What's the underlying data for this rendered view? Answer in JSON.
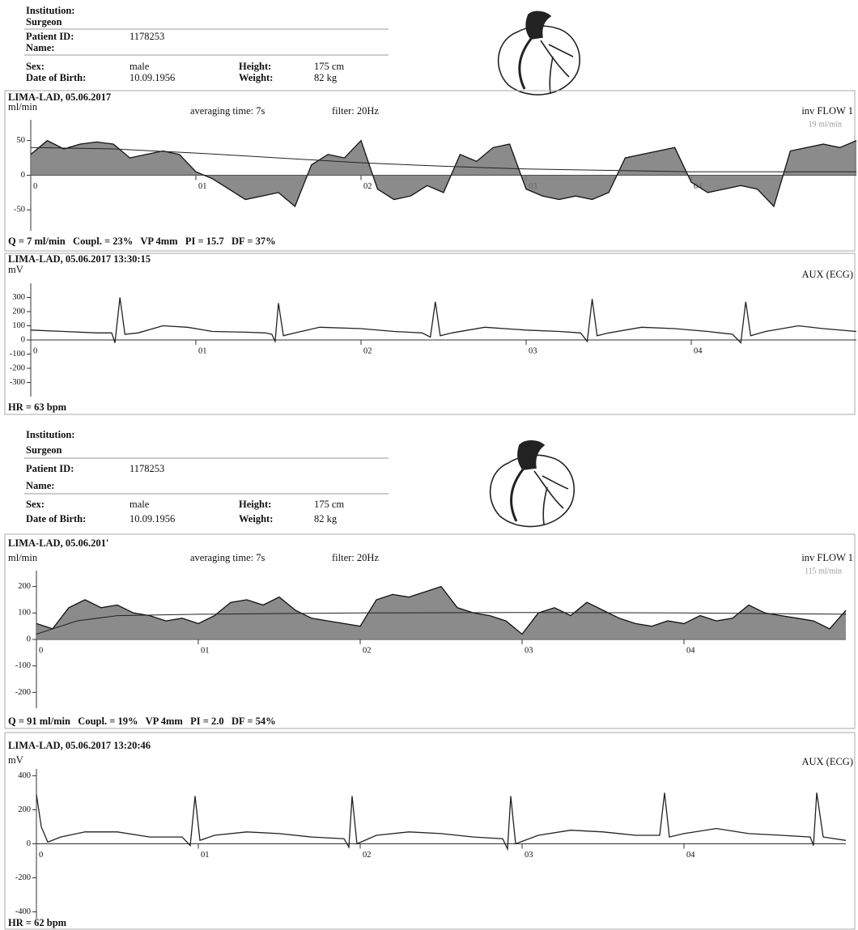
{
  "reports": [
    {
      "header": {
        "institution_label": "Institution:",
        "surgeon_label": "Surgeon",
        "patient_id_label": "Patient ID:",
        "patient_id": "1178253",
        "name_label": "Name:",
        "sex_label": "Sex:",
        "sex": "male",
        "dob_label": "Date of Birth:",
        "dob": "10.09.1956",
        "height_label": "Height:",
        "height": "175 cm",
        "weight_label": "Weight:",
        "weight": "82 kg"
      },
      "flow": {
        "type": "area",
        "title": "LIMA-LAD, 05.06.2017",
        "y_unit": "ml/min",
        "averaging": "averaging time: 7s",
        "filter": "filter: 20Hz",
        "channel": "inv FLOW 1",
        "scale_note": "19 ml/min",
        "x": [
          0,
          0.1,
          0.2,
          0.3,
          0.4,
          0.5,
          0.6,
          0.7,
          0.8,
          0.9,
          1,
          1.1,
          1.2,
          1.3,
          1.4,
          1.5,
          1.6,
          1.7,
          1.8,
          1.9,
          2,
          2.1,
          2.2,
          2.3,
          2.4,
          2.5,
          2.6,
          2.7,
          2.8,
          2.9,
          3,
          3.1,
          3.2,
          3.3,
          3.4,
          3.5,
          3.6,
          3.7,
          3.8,
          3.9,
          4,
          4.1,
          4.2,
          4.3,
          4.4,
          4.5,
          4.6,
          4.7,
          4.8,
          4.9,
          5
        ],
        "values": [
          30,
          50,
          38,
          45,
          48,
          45,
          25,
          30,
          35,
          30,
          5,
          -5,
          -20,
          -35,
          -30,
          -25,
          -45,
          15,
          30,
          25,
          50,
          -20,
          -35,
          -30,
          -15,
          -25,
          30,
          20,
          40,
          45,
          -20,
          -30,
          -35,
          -30,
          -35,
          -25,
          25,
          30,
          35,
          40,
          -10,
          -25,
          -20,
          -15,
          -20,
          -45,
          35,
          40,
          45,
          40,
          50
        ],
        "mean_x": [
          0,
          0.5,
          1,
          1.5,
          2,
          2.5,
          3,
          3.5,
          4,
          4.5,
          5
        ],
        "mean_values": [
          40,
          38,
          32,
          25,
          18,
          13,
          9,
          7,
          5,
          5,
          5
        ],
        "xlim": [
          0,
          5
        ],
        "ylim": [
          -80,
          80
        ],
        "xticks": [
          0,
          {
            "value": 1,
            "label": "01"
          },
          {
            "value": 2,
            "label": "02"
          },
          {
            "value": 3,
            "label": "03"
          },
          {
            "value": 4,
            "label": "04"
          }
        ],
        "yticks": [
          -50,
          0,
          50
        ],
        "summary": "Q = 7 ml/min   Coupl. = 23%   VP 4mm   PI = 15.7   DF = 37%"
      },
      "ecg": {
        "type": "line",
        "title": "LIMA-LAD, 05.06.2017 13:30:15",
        "y_unit": "mV",
        "channel": "AUX (ECG)",
        "x": [
          0,
          0.2,
          0.4,
          0.49,
          0.51,
          0.54,
          0.57,
          0.65,
          0.8,
          0.95,
          1.1,
          1.3,
          1.42,
          1.46,
          1.48,
          1.5,
          1.53,
          1.6,
          1.75,
          2.0,
          2.2,
          2.37,
          2.42,
          2.45,
          2.48,
          2.55,
          2.75,
          3.0,
          3.2,
          3.33,
          3.37,
          3.4,
          3.43,
          3.5,
          3.7,
          3.9,
          4.1,
          4.25,
          4.3,
          4.33,
          4.36,
          4.45,
          4.65,
          4.8,
          5.0
        ],
        "values": [
          70,
          60,
          50,
          50,
          -20,
          300,
          40,
          50,
          100,
          90,
          60,
          55,
          50,
          40,
          -10,
          260,
          30,
          50,
          90,
          80,
          60,
          50,
          20,
          270,
          30,
          50,
          90,
          70,
          60,
          50,
          -10,
          290,
          30,
          50,
          90,
          80,
          60,
          40,
          -20,
          270,
          30,
          60,
          100,
          80,
          60
        ],
        "xlim": [
          0,
          5
        ],
        "ylim": [
          -400,
          400
        ],
        "xticks": [
          0,
          {
            "value": 1,
            "label": "01"
          },
          {
            "value": 2,
            "label": "02"
          },
          {
            "value": 3,
            "label": "03"
          },
          {
            "value": 4,
            "label": "04"
          }
        ],
        "yticks": [
          -300,
          -200,
          -100,
          0,
          100,
          200,
          300
        ],
        "summary": "HR = 63 bpm"
      }
    },
    {
      "header": {
        "institution_label": "Institution:",
        "surgeon_label": "Surgeon",
        "patient_id_label": "Patient ID:",
        "patient_id": "1178253",
        "name_label": "Name:",
        "sex_label": "Sex:",
        "sex": "male",
        "dob_label": "Date of Birth:",
        "dob": "10.09.1956",
        "height_label": "Height:",
        "height": "175 cm",
        "weight_label": "Weight:",
        "weight": "82 kg"
      },
      "flow": {
        "type": "area",
        "title": "LIMA-LAD, 05.06.201'",
        "y_unit": "ml/min",
        "averaging": "averaging time: 7s",
        "filter": "filter: 20Hz",
        "channel": "inv FLOW 1",
        "scale_note": "115 ml/min",
        "x": [
          0,
          0.1,
          0.2,
          0.3,
          0.4,
          0.5,
          0.6,
          0.7,
          0.8,
          0.9,
          1,
          1.1,
          1.2,
          1.3,
          1.4,
          1.5,
          1.6,
          1.7,
          1.8,
          1.9,
          2,
          2.1,
          2.2,
          2.3,
          2.4,
          2.5,
          2.6,
          2.7,
          2.8,
          2.9,
          3,
          3.1,
          3.2,
          3.3,
          3.4,
          3.5,
          3.6,
          3.7,
          3.8,
          3.9,
          4,
          4.1,
          4.2,
          4.3,
          4.4,
          4.5,
          4.6,
          4.7,
          4.8,
          4.9,
          5
        ],
        "values": [
          60,
          40,
          120,
          150,
          120,
          130,
          100,
          90,
          70,
          80,
          60,
          90,
          140,
          150,
          130,
          160,
          110,
          80,
          70,
          60,
          50,
          150,
          170,
          160,
          180,
          200,
          120,
          100,
          90,
          70,
          20,
          100,
          120,
          90,
          140,
          110,
          80,
          60,
          50,
          70,
          60,
          90,
          70,
          80,
          130,
          100,
          90,
          80,
          70,
          40,
          110
        ],
        "mean_x": [
          0,
          0.25,
          0.5,
          1,
          2,
          3,
          4,
          5
        ],
        "mean_values": [
          20,
          70,
          90,
          95,
          100,
          102,
          100,
          95
        ],
        "xlim": [
          0,
          5
        ],
        "ylim": [
          -260,
          260
        ],
        "xticks": [
          0,
          {
            "value": 1,
            "label": "01"
          },
          {
            "value": 2,
            "label": "02"
          },
          {
            "value": 3,
            "label": "03"
          },
          {
            "value": 4,
            "label": "04"
          }
        ],
        "yticks": [
          -200,
          -100,
          0,
          100,
          200
        ],
        "summary": "Q = 91 ml/min   Coupl. = 19%   VP 4mm   PI = 2.0   DF = 54%"
      },
      "ecg": {
        "type": "line",
        "title": "LIMA-LAD, 05.06.2017 13:20:46",
        "y_unit": "mV",
        "channel": "AUX (ECG)",
        "x": [
          0,
          0.03,
          0.07,
          0.15,
          0.3,
          0.5,
          0.7,
          0.9,
          0.95,
          0.98,
          1.01,
          1.1,
          1.3,
          1.5,
          1.7,
          1.9,
          1.93,
          1.95,
          1.98,
          2.1,
          2.3,
          2.5,
          2.7,
          2.88,
          2.91,
          2.93,
          2.96,
          3.1,
          3.3,
          3.5,
          3.7,
          3.85,
          3.88,
          3.91,
          4.0,
          4.2,
          4.4,
          4.6,
          4.78,
          4.8,
          4.82,
          4.86,
          5.0
        ],
        "values": [
          290,
          100,
          10,
          40,
          70,
          70,
          40,
          40,
          -10,
          280,
          20,
          50,
          70,
          60,
          40,
          30,
          -20,
          280,
          0,
          50,
          70,
          60,
          40,
          30,
          -30,
          280,
          0,
          50,
          80,
          70,
          50,
          50,
          300,
          40,
          60,
          90,
          60,
          50,
          40,
          -10,
          300,
          40,
          20
        ],
        "xlim": [
          0,
          5
        ],
        "ylim": [
          -440,
          440
        ],
        "xticks": [
          0,
          {
            "value": 1,
            "label": "01"
          },
          {
            "value": 2,
            "label": "02"
          },
          {
            "value": 3,
            "label": "03"
          },
          {
            "value": 4,
            "label": "04"
          }
        ],
        "yticks": [
          -400,
          -200,
          0,
          200,
          400
        ],
        "summary": "HR = 62 bpm"
      }
    }
  ]
}
